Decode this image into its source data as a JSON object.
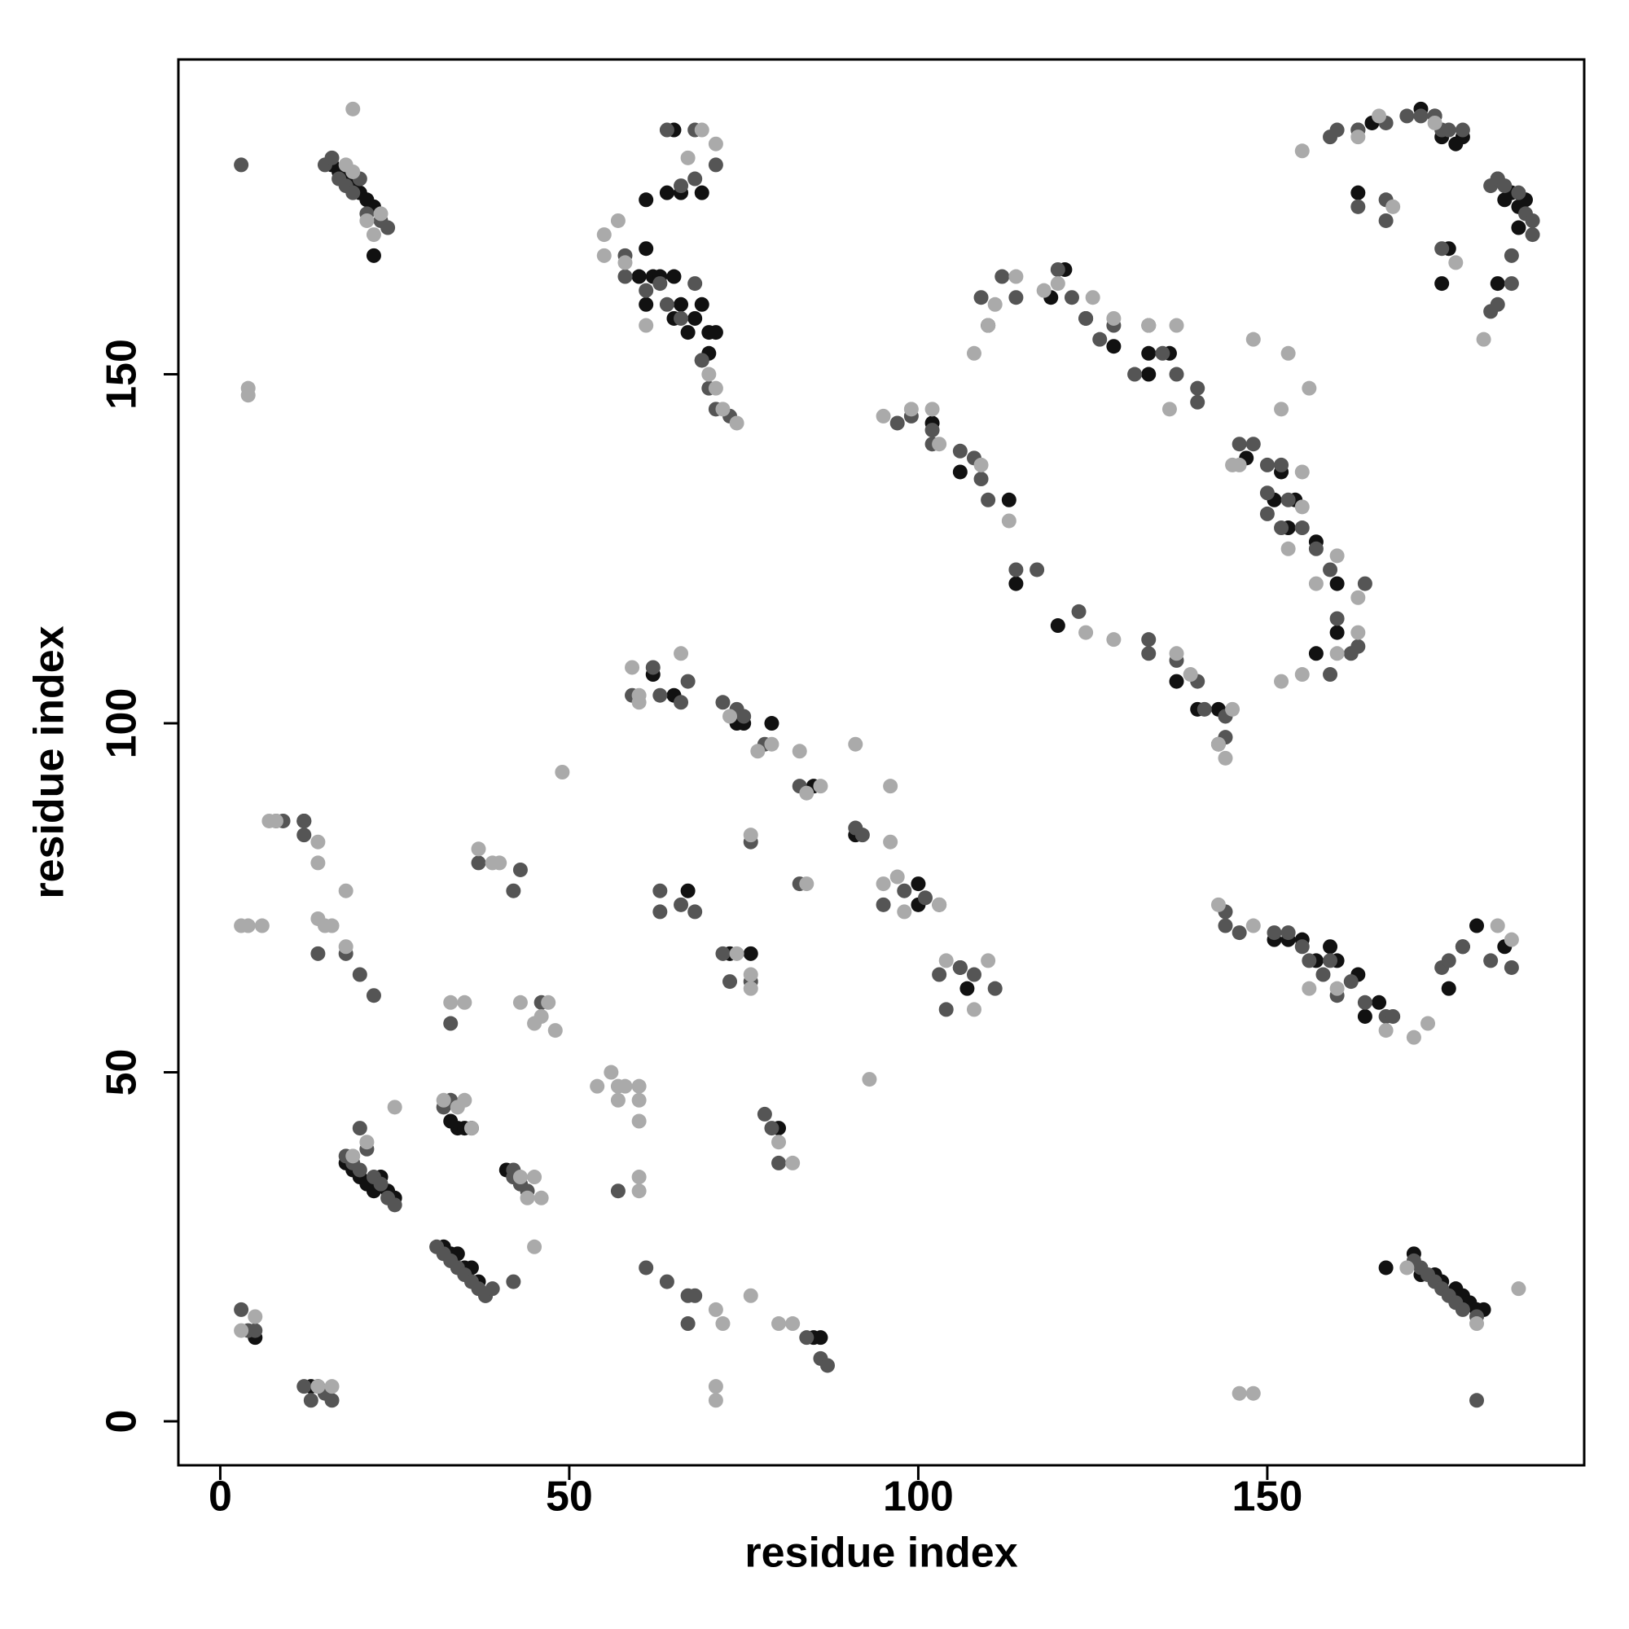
{
  "chart_data": {
    "type": "scatter",
    "xlabel": "residue index",
    "ylabel": "residue index",
    "xlim": [
      -6,
      195.4
    ],
    "ylim": [
      -6.3,
      195.1
    ],
    "xticks": [
      0,
      50,
      100,
      150
    ],
    "yticks": [
      0,
      50,
      100,
      150
    ],
    "grid": false,
    "series": [
      {
        "color": "#111111",
        "x": [
          16,
          17,
          18,
          19,
          20,
          21,
          22,
          22,
          61,
          60,
          62,
          63,
          61,
          65,
          65,
          66,
          67,
          68,
          69,
          70,
          69,
          70,
          64,
          66,
          61,
          65,
          69,
          71,
          110,
          119,
          121,
          124,
          128,
          133,
          133,
          136,
          102,
          106,
          113,
          114,
          120,
          137,
          140,
          143,
          163,
          165,
          172,
          174,
          175,
          177,
          178,
          183,
          185,
          186,
          187,
          184,
          183,
          163,
          176,
          175,
          186,
          147,
          152,
          151,
          153,
          154,
          157,
          160,
          157,
          160,
          151,
          153,
          155,
          157,
          159,
          160,
          163,
          164,
          166,
          176,
          178,
          180,
          184,
          167,
          171,
          172,
          174,
          175,
          177,
          178,
          179,
          180,
          181,
          62,
          65,
          74,
          75,
          79,
          85,
          91,
          100,
          100,
          106,
          107,
          67,
          73,
          76,
          12,
          5,
          13,
          14,
          18,
          19,
          20,
          21,
          22,
          23,
          24,
          25,
          32,
          33,
          34,
          35,
          36,
          37,
          38,
          34,
          35,
          36,
          41,
          42,
          43,
          80,
          85,
          86,
          33
        ],
        "values": [
          180,
          179,
          178,
          177,
          176,
          175,
          174,
          167,
          168,
          164,
          164,
          164,
          160,
          164,
          158,
          160,
          156,
          158,
          160,
          156,
          152,
          153,
          176,
          176,
          175,
          185,
          176,
          156,
          157,
          161,
          165,
          158,
          154,
          153,
          150,
          153,
          143,
          136,
          132,
          120,
          114,
          106,
          102,
          102,
          185,
          186,
          188,
          187,
          184,
          183,
          184,
          178,
          176,
          174,
          175,
          175,
          163,
          176,
          168,
          163,
          171,
          138,
          136,
          132,
          128,
          132,
          126,
          120,
          110,
          113,
          69,
          69,
          69,
          66,
          68,
          66,
          64,
          58,
          60,
          62,
          68,
          71,
          68,
          22,
          24,
          21,
          21,
          20,
          19,
          18,
          17,
          16,
          16,
          107,
          104,
          100,
          100,
          100,
          91,
          84,
          77,
          74,
          65,
          62,
          76,
          67,
          67,
          86,
          12,
          5,
          5,
          37,
          36,
          35,
          34,
          33,
          35,
          33,
          32,
          25,
          24,
          24,
          22,
          22,
          20,
          18,
          42,
          42,
          42,
          36,
          35,
          34,
          42,
          12,
          12,
          43
        ]
      },
      {
        "color": "#555555",
        "x": [
          3,
          15,
          16,
          17,
          18,
          19,
          20,
          21,
          23,
          24,
          58,
          58,
          61,
          63,
          64,
          66,
          68,
          69,
          70,
          71,
          73,
          64,
          68,
          66,
          71,
          68,
          97,
          99,
          102,
          109,
          112,
          114,
          120,
          122,
          124,
          126,
          128,
          131,
          133,
          135,
          137,
          140,
          140,
          102,
          106,
          108,
          109,
          110,
          114,
          117,
          123,
          133,
          133,
          137,
          140,
          141,
          144,
          144,
          143,
          159,
          160,
          163,
          167,
          170,
          172,
          174,
          175,
          176,
          178,
          182,
          183,
          184,
          186,
          187,
          188,
          188,
          185,
          185,
          182,
          183,
          167,
          163,
          167,
          175,
          146,
          148,
          150,
          152,
          150,
          153,
          150,
          152,
          155,
          157,
          159,
          160,
          162,
          164,
          163,
          159,
          144,
          144,
          146,
          151,
          153,
          155,
          156,
          158,
          159,
          160,
          162,
          164,
          167,
          168,
          175,
          176,
          178,
          182,
          185,
          171,
          172,
          173,
          174,
          175,
          176,
          177,
          178,
          180,
          180,
          59,
          62,
          63,
          66,
          67,
          72,
          74,
          75,
          78,
          83,
          91,
          92,
          95,
          98,
          101,
          103,
          103,
          104,
          106,
          108,
          111,
          63,
          63,
          66,
          68,
          72,
          73,
          76,
          83,
          76,
          8,
          9,
          12,
          12,
          14,
          18,
          20,
          22,
          37,
          42,
          43,
          33,
          46,
          3,
          4,
          5,
          12,
          13,
          15,
          16,
          18,
          19,
          20,
          21,
          22,
          23,
          24,
          25,
          20,
          31,
          32,
          33,
          34,
          35,
          36,
          37,
          38,
          39,
          42,
          32,
          33,
          42,
          43,
          61,
          64,
          67,
          68,
          67,
          57,
          78,
          79,
          80,
          84,
          86,
          87,
          42,
          44
        ],
        "values": [
          180,
          180,
          181,
          178,
          177,
          176,
          178,
          173,
          172,
          171,
          167,
          164,
          162,
          163,
          160,
          158,
          163,
          152,
          148,
          145,
          144,
          185,
          185,
          177,
          180,
          178,
          143,
          144,
          142,
          161,
          164,
          161,
          165,
          161,
          158,
          155,
          157,
          150,
          157,
          153,
          150,
          148,
          146,
          140,
          139,
          138,
          135,
          132,
          122,
          122,
          116,
          110,
          112,
          109,
          106,
          102,
          101,
          98,
          97,
          184,
          185,
          185,
          186,
          187,
          187,
          187,
          185,
          185,
          185,
          177,
          178,
          177,
          176,
          173,
          172,
          170,
          167,
          163,
          159,
          160,
          175,
          174,
          172,
          168,
          140,
          140,
          137,
          137,
          133,
          132,
          130,
          128,
          128,
          125,
          122,
          115,
          110,
          120,
          111,
          107,
          73,
          71,
          70,
          70,
          70,
          68,
          66,
          64,
          66,
          61,
          63,
          60,
          58,
          58,
          65,
          66,
          68,
          66,
          65,
          23,
          22,
          21,
          20,
          19,
          18,
          17,
          16,
          15,
          3,
          104,
          108,
          104,
          103,
          106,
          103,
          102,
          101,
          97,
          91,
          85,
          84,
          74,
          76,
          75,
          74,
          64,
          59,
          65,
          64,
          62,
          73,
          76,
          74,
          73,
          67,
          63,
          63,
          77,
          83,
          86,
          86,
          84,
          86,
          67,
          67,
          64,
          61,
          80,
          76,
          79,
          57,
          60,
          16,
          13,
          13,
          5,
          3,
          4,
          3,
          38,
          37,
          36,
          39,
          35,
          34,
          32,
          31,
          42,
          25,
          24,
          23,
          22,
          21,
          20,
          19,
          18,
          19,
          20,
          45,
          46,
          35,
          34,
          22,
          20,
          18,
          18,
          14,
          33,
          44,
          42,
          37,
          12,
          9,
          8,
          36,
          33
        ]
      },
      {
        "color": "#aaaaaa",
        "x": [
          18,
          19,
          22,
          23,
          21,
          19,
          4,
          4,
          55,
          57,
          55,
          58,
          61,
          69,
          71,
          74,
          71,
          70,
          67,
          72,
          95,
          99,
          102,
          108,
          111,
          114,
          120,
          125,
          128,
          133,
          137,
          136,
          118,
          110,
          103,
          109,
          113,
          124,
          128,
          137,
          139,
          144,
          145,
          143,
          155,
          163,
          166,
          174,
          181,
          168,
          177,
          153,
          145,
          146,
          148,
          152,
          156,
          155,
          155,
          153,
          157,
          160,
          163,
          163,
          160,
          152,
          155,
          143,
          148,
          156,
          167,
          171,
          173,
          183,
          185,
          160,
          180,
          186,
          146,
          148,
          170,
          59,
          60,
          66,
          60,
          79,
          83,
          84,
          86,
          91,
          96,
          96,
          95,
          98,
          103,
          108,
          110,
          97,
          104,
          73,
          77,
          76,
          84,
          76,
          76,
          74,
          3,
          4,
          6,
          7,
          8,
          14,
          14,
          14,
          15,
          16,
          18,
          18,
          37,
          39,
          40,
          33,
          35,
          43,
          47,
          48,
          46,
          45,
          49,
          3,
          5,
          32,
          35,
          36,
          34,
          44,
          46,
          45,
          43,
          25,
          45,
          54,
          57,
          58,
          60,
          60,
          60,
          60,
          60,
          56,
          57,
          76,
          71,
          72,
          80,
          82,
          71,
          71,
          14,
          16,
          93,
          82,
          80,
          19,
          21
        ],
        "values": [
          180,
          179,
          170,
          173,
          172,
          188,
          148,
          147,
          170,
          172,
          167,
          166,
          157,
          185,
          183,
          143,
          148,
          150,
          181,
          145,
          144,
          145,
          145,
          153,
          160,
          164,
          163,
          161,
          158,
          157,
          157,
          145,
          162,
          157,
          140,
          137,
          129,
          113,
          112,
          110,
          107,
          95,
          102,
          97,
          182,
          184,
          187,
          186,
          155,
          174,
          166,
          153,
          137,
          137,
          155,
          145,
          148,
          136,
          131,
          125,
          120,
          124,
          118,
          113,
          110,
          106,
          107,
          74,
          71,
          62,
          56,
          55,
          57,
          71,
          69,
          62,
          14,
          19,
          4,
          4,
          22,
          108,
          103,
          110,
          104,
          97,
          96,
          90,
          91,
          97,
          91,
          83,
          77,
          73,
          74,
          59,
          66,
          78,
          66,
          101,
          96,
          84,
          77,
          64,
          62,
          67,
          71,
          71,
          71,
          86,
          86,
          83,
          80,
          72,
          71,
          71,
          76,
          68,
          82,
          80,
          80,
          60,
          60,
          60,
          60,
          56,
          58,
          57,
          93,
          13,
          15,
          46,
          46,
          42,
          45,
          32,
          32,
          35,
          35,
          45,
          25,
          48,
          48,
          48,
          48,
          43,
          46,
          35,
          33,
          50,
          46,
          18,
          16,
          14,
          14,
          14,
          5,
          3,
          5,
          5,
          49,
          37,
          40,
          38,
          40
        ]
      }
    ]
  }
}
